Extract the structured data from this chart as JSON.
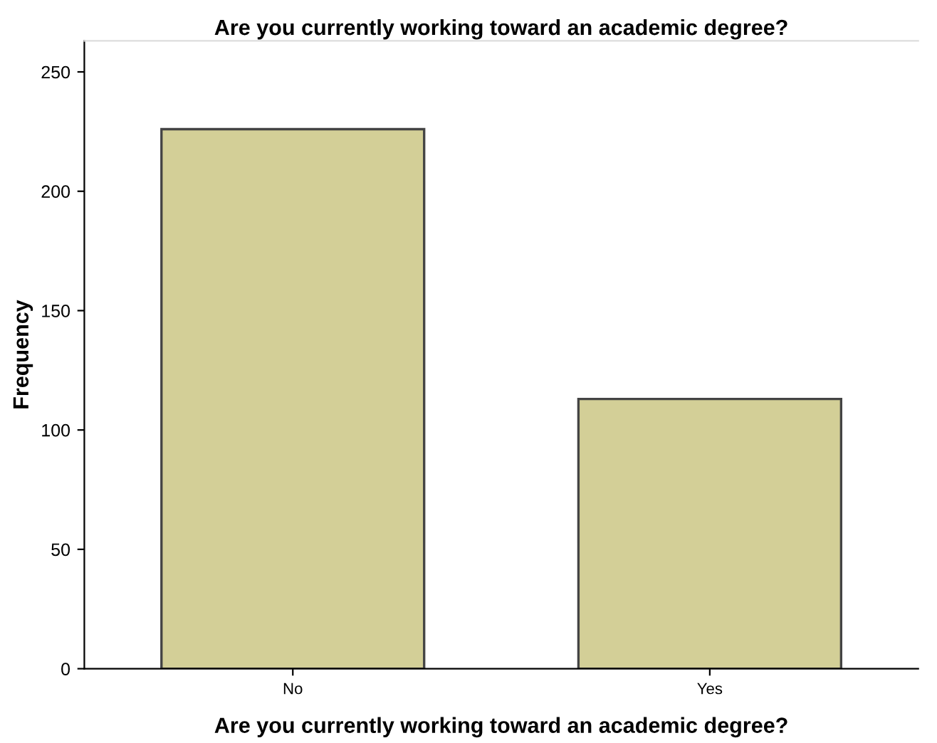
{
  "chart_data": {
    "type": "bar",
    "title": "Are you currently working toward an academic degree?",
    "xlabel": "Are you currently working toward an academic degree?",
    "ylabel": "Frequency",
    "categories": [
      "No",
      "Yes"
    ],
    "values": [
      226,
      113
    ],
    "color": "#d3cf97",
    "ylim": [
      0,
      263
    ],
    "yticks": [
      0,
      50,
      100,
      150,
      200,
      250
    ],
    "grid": false,
    "legend": false
  }
}
